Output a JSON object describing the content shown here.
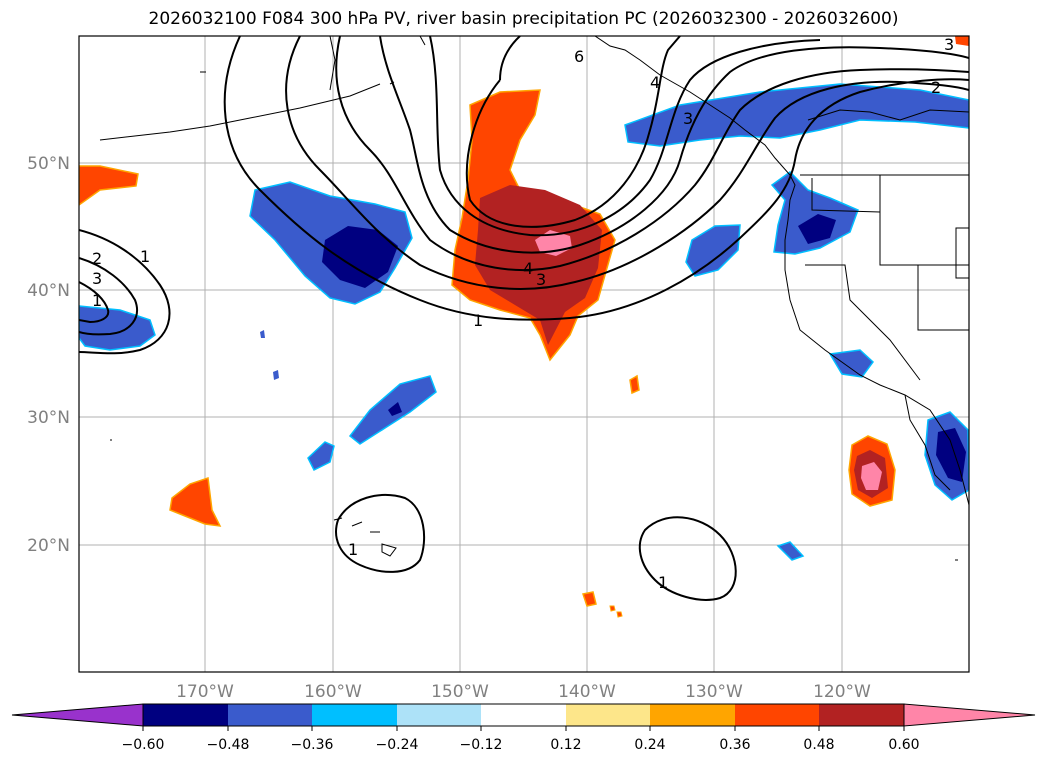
{
  "title": "2026032100 F084 300 hPa PV, river basin precipitation PC (2026032300 - 2026032600)",
  "map": {
    "lat_labels": [
      "50°N",
      "40°N",
      "30°N",
      "20°N"
    ],
    "lon_labels": [
      "170°W",
      "160°W",
      "150°W",
      "140°W",
      "130°W",
      "120°W"
    ],
    "contour_labels": [
      "6",
      "2",
      "3",
      "4",
      "3",
      "1",
      "2",
      "3",
      "1",
      "1",
      "1",
      "1",
      "4",
      "3"
    ]
  },
  "colorbar": {
    "ticks": [
      "−0.60",
      "−0.48",
      "−0.36",
      "−0.24",
      "−0.12",
      "0.12",
      "0.24",
      "0.36",
      "0.48",
      "0.60"
    ],
    "colors": [
      "#9932cc",
      "#000080",
      "#3a5bcc",
      "#00bfff",
      "#ade2f8",
      "#ffffff",
      "#fde68a",
      "#ffa500",
      "#ff4500",
      "#b22222",
      "#ff85a8"
    ]
  },
  "fields": {
    "color_low1": "#3a5bcc",
    "color_low2": "#000080",
    "color_high1": "#ff4500",
    "color_high2": "#b22222",
    "color_high3": "#ff85a8"
  }
}
